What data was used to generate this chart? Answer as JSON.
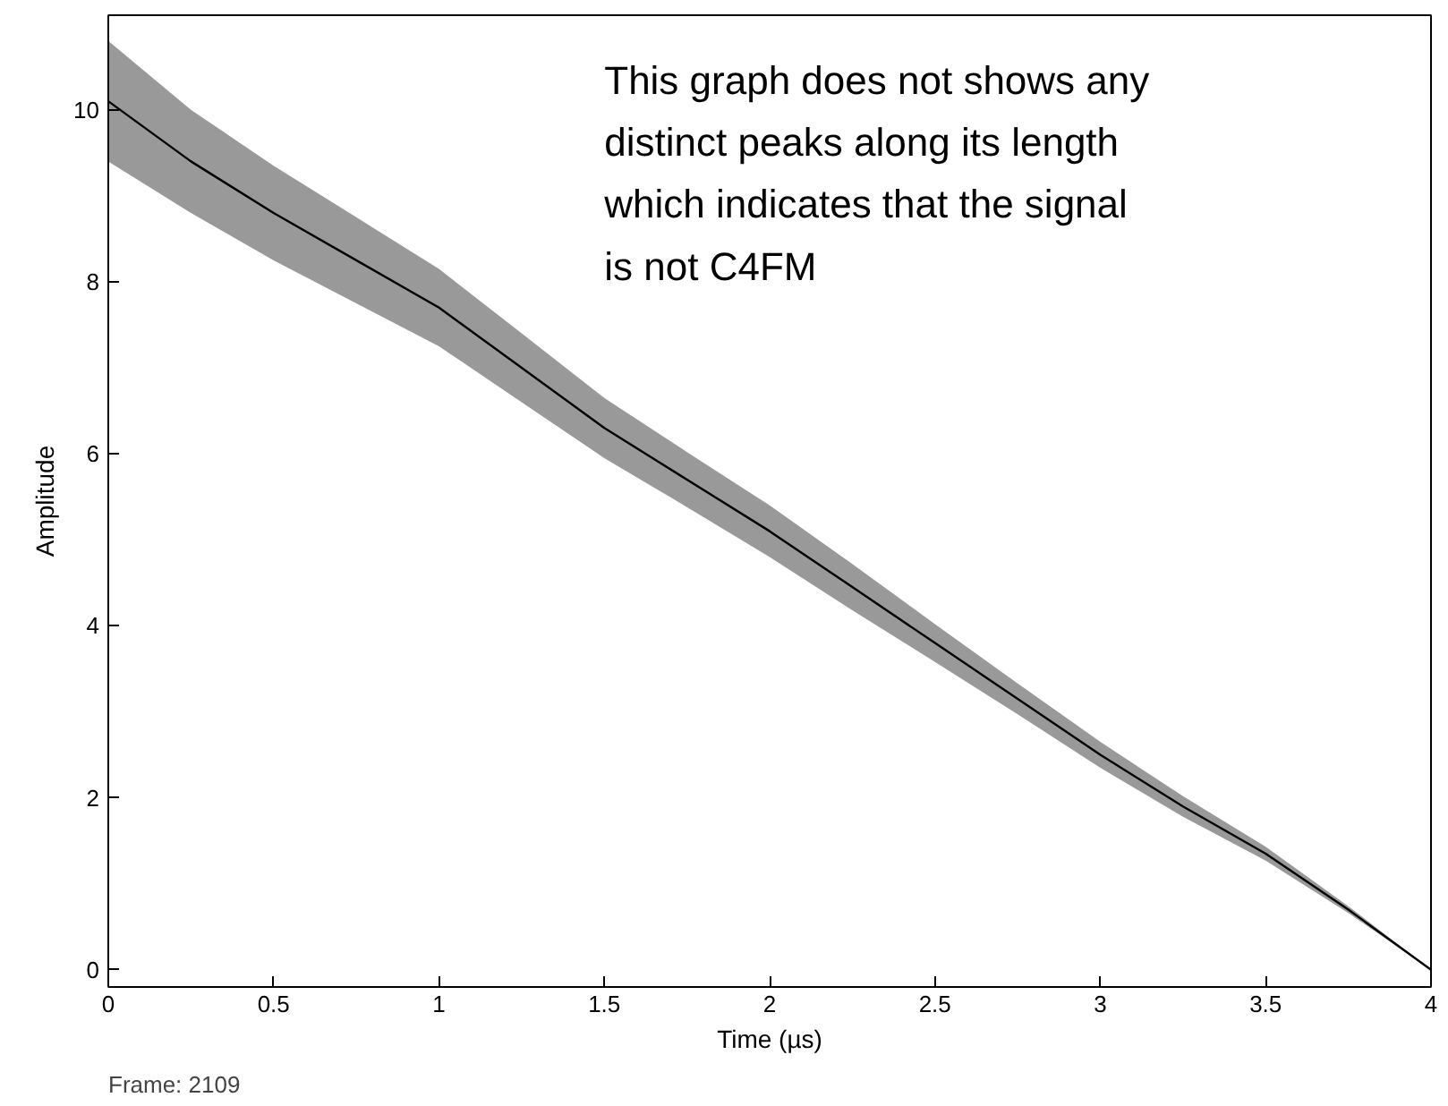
{
  "chart_data": {
    "type": "line",
    "xlabel": "Time (µs)",
    "ylabel": "Amplitude",
    "annotations": [
      "This graph does not shows any\ndistinct peaks along its length\nwhich indicates that the signal\nis not C4FM",
      "Frame: 2109"
    ],
    "x": [
      0,
      0.25,
      0.5,
      0.75,
      1,
      1.25,
      1.5,
      1.75,
      2,
      2.25,
      2.5,
      2.75,
      3,
      3.25,
      3.5,
      3.75,
      4
    ],
    "series": [
      {
        "color": "#000000",
        "values": [
          10.1,
          9.4,
          8.8,
          8.25,
          7.7,
          7.0,
          6.3,
          5.7,
          5.1,
          4.45,
          3.8,
          3.15,
          2.5,
          1.9,
          1.35,
          0.7,
          0
        ],
        "lower": [
          9.4,
          8.8,
          8.25,
          7.75,
          7.25,
          6.6,
          5.95,
          5.38,
          4.8,
          4.18,
          3.58,
          2.97,
          2.35,
          1.78,
          1.27,
          0.66,
          0
        ],
        "upper": [
          10.8,
          10.0,
          9.35,
          8.75,
          8.15,
          7.4,
          6.65,
          6.02,
          5.4,
          4.72,
          4.02,
          3.33,
          2.65,
          2.02,
          1.43,
          0.74,
          0
        ]
      }
    ],
    "xlim": [
      0,
      4
    ],
    "ylim": [
      -0.2,
      11.1
    ],
    "xticks": [
      0,
      0.5,
      1,
      1.5,
      2,
      2.5,
      3,
      3.5,
      4
    ],
    "yticks": [
      0,
      2,
      4,
      6,
      8,
      10
    ],
    "grid": false,
    "marker": "none",
    "line_style": "solid"
  }
}
